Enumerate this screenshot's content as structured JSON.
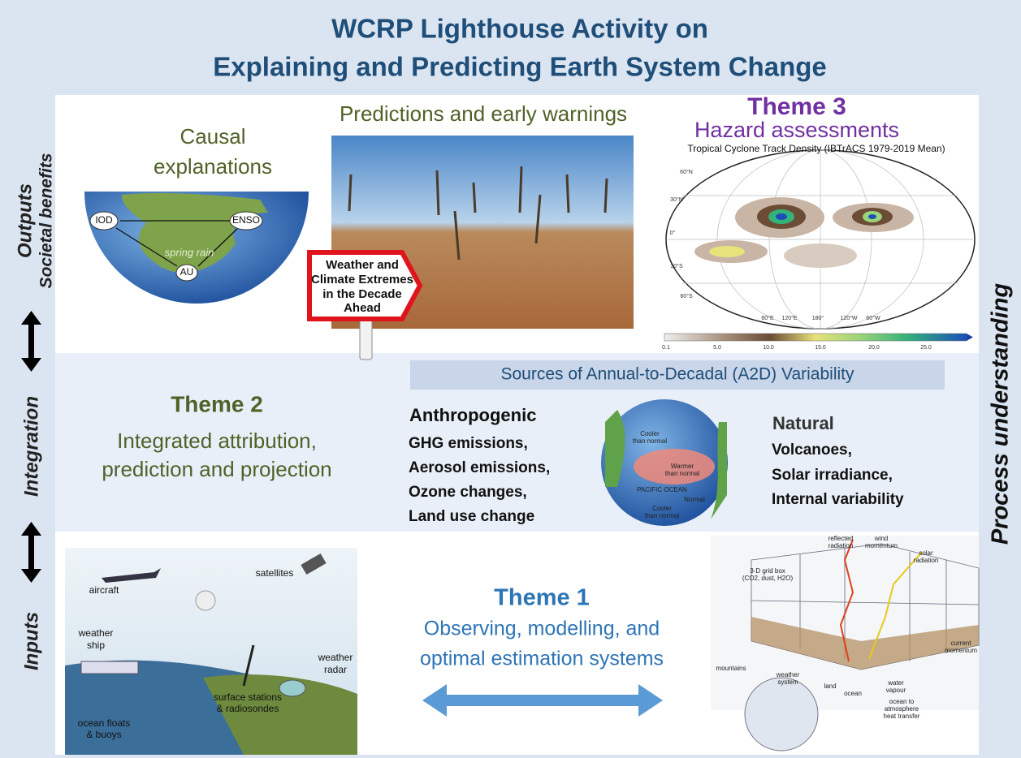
{
  "header": {
    "title_lines": [
      "WCRP Lighthouse Activity on",
      "Explaining and Predicting Earth System Change"
    ]
  },
  "side_left": {
    "outputs": "Outputs",
    "societal_benefits": "Societal benefits",
    "integration": "Integration",
    "inputs": "Inputs"
  },
  "side_right": {
    "label": "Process understanding"
  },
  "outputs": {
    "causal": {
      "title_lines": [
        "Causal",
        "explanations"
      ],
      "nodes": [
        "IOD",
        "ENSO",
        "AU"
      ],
      "label": "spring rain"
    },
    "predictions": {
      "title": "Predictions and early warnings",
      "sign_lines": [
        "Weather and",
        "Climate Extremes",
        "in the Decade",
        "Ahead"
      ]
    },
    "theme3": {
      "theme": "Theme 3",
      "title": "Hazard assessments",
      "map_title": "Tropical Cyclone Track Density (IBTrACS 1979-2019 Mean)",
      "lat_labels": [
        "60°N",
        "30°N",
        "0°",
        "30°S",
        "60°S"
      ],
      "lon_labels": [
        "60°E",
        "120°E",
        "180°",
        "120°W",
        "60°W"
      ],
      "colorbar_labels": [
        "0.1",
        "5.0",
        "10.0",
        "15.0",
        "20.0",
        "25.0"
      ]
    }
  },
  "integration": {
    "theme": "Theme 2",
    "lines": [
      "Integrated attribution,",
      "prediction and projection"
    ],
    "sources_title": "Sources of Annual-to-Decadal (A2D) Variability",
    "anthropogenic": {
      "title": "Anthropogenic",
      "items": [
        "GHG emissions,",
        "Aerosol emissions,",
        "Ozone changes,",
        "Land use change"
      ]
    },
    "natural": {
      "title": "Natural",
      "items": [
        "Volcanoes,",
        "Solar irradiance,",
        "Internal variability"
      ]
    },
    "globe_labels": [
      "Cooler",
      "than normal",
      "Warmer",
      "than normal",
      "PACIFIC OCEAN",
      "Normal",
      "Cooler",
      "than normal"
    ]
  },
  "inputs": {
    "theme": "Theme 1",
    "lines": [
      "Observing, modelling, and",
      "optimal estimation systems"
    ],
    "obs_labels": [
      "aircraft",
      "satellites",
      "weather",
      "ship",
      "weather",
      "radar",
      "surface stations",
      "& radiosondes",
      "ocean floats",
      "& buoys"
    ],
    "model_labels": [
      "reflected",
      "radiation",
      "wind",
      "momentum",
      "solar",
      "radiation",
      "3-D grid box",
      "(CO2, dust, H2O)",
      "mountains",
      "weather",
      "system",
      "land",
      "ocean",
      "water",
      "vapour",
      "ocean to",
      "atmosphere",
      "heat transfer",
      "current",
      "momentum"
    ]
  }
}
